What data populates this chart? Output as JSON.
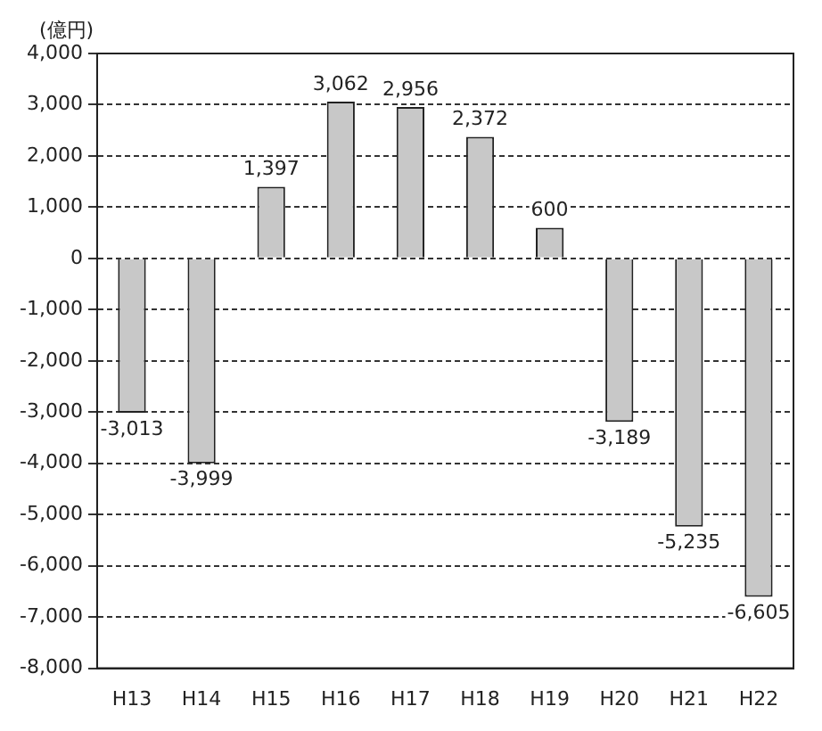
{
  "chart_data": {
    "type": "bar",
    "ylabel": "(億円)",
    "categories": [
      "H13",
      "H14",
      "H15",
      "H16",
      "H17",
      "H18",
      "H19",
      "H20",
      "H21",
      "H22"
    ],
    "values": [
      -3013,
      -3999,
      1397,
      3062,
      2956,
      2372,
      600,
      -3189,
      -5235,
      -6605
    ],
    "value_labels": [
      "-3,013",
      "-3,999",
      "1,397",
      "3,062",
      "2,956",
      "2,372",
      "600",
      "-3,189",
      "-5,235",
      "-6,605"
    ],
    "color": "#c8c8c8",
    "ylim": [
      -8000,
      4000
    ],
    "yticks": [
      {
        "value": 4000,
        "label": "4,000"
      },
      {
        "value": 3000,
        "label": "3,000"
      },
      {
        "value": 2000,
        "label": "2,000"
      },
      {
        "value": 1000,
        "label": "1,000"
      },
      0,
      {
        "value": -1000,
        "label": "-1,000"
      },
      {
        "value": -2000,
        "label": "-2,000"
      },
      {
        "value": -3000,
        "label": "-3,000"
      },
      {
        "value": -4000,
        "label": "-4,000"
      },
      {
        "value": -5000,
        "label": "-5,000"
      },
      {
        "value": -6000,
        "label": "-6,000"
      },
      {
        "value": -7000,
        "label": "-7,000"
      },
      {
        "value": -8000,
        "label": "-8,000"
      }
    ],
    "grid": "y",
    "legend": false
  }
}
